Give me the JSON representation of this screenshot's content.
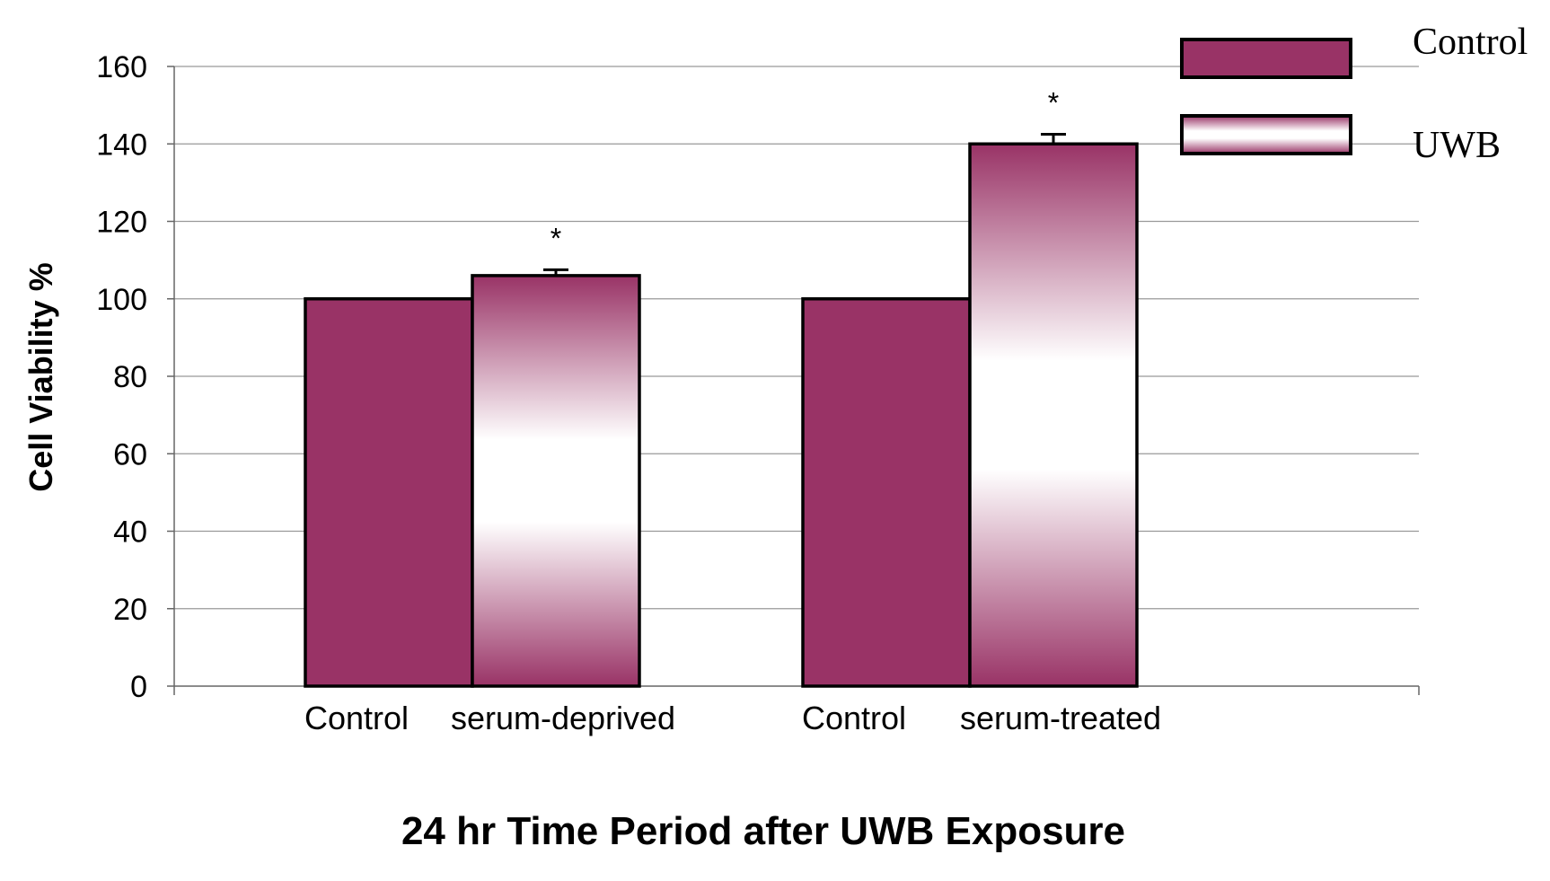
{
  "chart_data": {
    "type": "bar",
    "title": "",
    "xlabel": "24 hr Time Period after UWB Exposure",
    "ylabel": "Cell Viability %",
    "ylim": [
      0,
      160
    ],
    "yticks": [
      0,
      20,
      40,
      60,
      80,
      100,
      120,
      140,
      160
    ],
    "grid": true,
    "legend": "top-right",
    "categories": [
      "serum-deprived",
      "serum-treated"
    ],
    "category_bar_labels": [
      [
        "Control",
        "serum-deprived"
      ],
      [
        "Control",
        "serum-treated"
      ]
    ],
    "series": [
      {
        "name": "Control",
        "values": [
          100,
          100
        ],
        "errors": [
          0,
          0
        ],
        "significance": [
          "",
          ""
        ],
        "color": "#993366"
      },
      {
        "name": "UWB",
        "values": [
          106,
          140
        ],
        "errors": [
          1.5,
          2.5
        ],
        "significance": [
          "*",
          "*"
        ],
        "color": "#993366"
      }
    ]
  }
}
